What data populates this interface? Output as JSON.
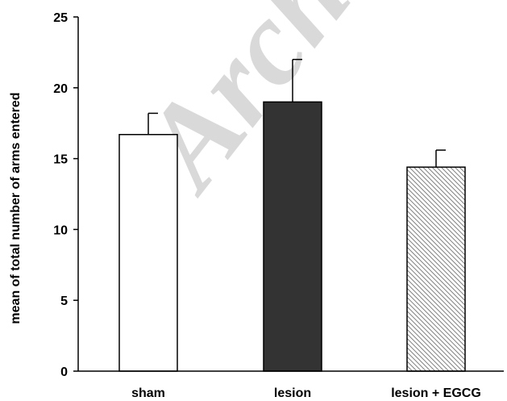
{
  "chart_data": {
    "type": "bar",
    "title": "",
    "xlabel": "",
    "ylabel": "mean of total number of arms entered",
    "categories": [
      "sham",
      "lesion",
      "lesion + EGCG"
    ],
    "values": [
      16.7,
      19.0,
      14.4
    ],
    "errors": [
      1.5,
      3.0,
      1.2
    ],
    "ylim": [
      0,
      25
    ],
    "yticks": [
      0,
      5,
      10,
      15,
      20,
      25
    ],
    "bar_fills": [
      "white",
      "dark",
      "hatched"
    ],
    "colors": {
      "dark": "#333333",
      "outline": "#000000",
      "hatch": "#7f7f7f"
    },
    "grid": false,
    "legend": "none"
  },
  "watermark": {
    "text": "Arch"
  }
}
